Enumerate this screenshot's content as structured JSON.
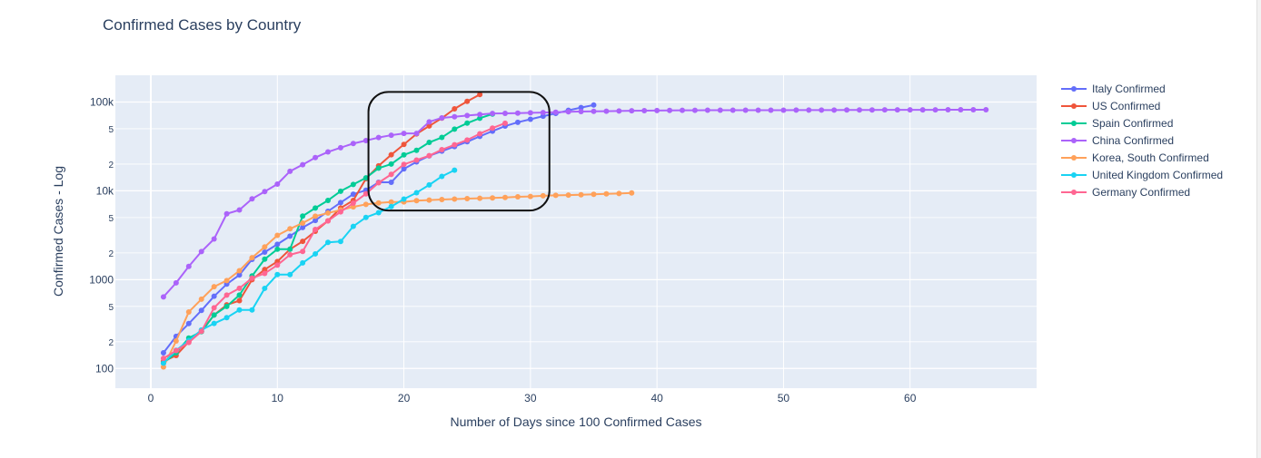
{
  "chart_data": {
    "type": "line",
    "title": "Confirmed Cases by Country",
    "xlabel": "Number of Days since 100 Confirmed Cases",
    "ylabel": "Confirmed Cases - Log",
    "y_scale": "log",
    "xlim": [
      -2.8,
      70
    ],
    "ylim": [
      60,
      200000
    ],
    "x_ticks": [
      0,
      10,
      20,
      30,
      40,
      50,
      60
    ],
    "y_major_ticks": [
      {
        "v": 100,
        "label": "100"
      },
      {
        "v": 1000,
        "label": "1000"
      },
      {
        "v": 10000,
        "label": "10k"
      },
      {
        "v": 100000,
        "label": "100k"
      }
    ],
    "y_minor_ticks": [
      {
        "v": 200,
        "label": "2"
      },
      {
        "v": 500,
        "label": "5"
      },
      {
        "v": 2000,
        "label": "2"
      },
      {
        "v": 5000,
        "label": "5"
      },
      {
        "v": 20000,
        "label": "2"
      },
      {
        "v": 50000,
        "label": "5"
      }
    ],
    "legend_position": "right",
    "highlight_box": {
      "x": [
        17.2,
        31.5
      ],
      "y": [
        6000,
        130000
      ]
    },
    "series": [
      {
        "name": "Italy Confirmed",
        "color": "#636efa",
        "x": [
          1,
          2,
          3,
          4,
          5,
          6,
          7,
          8,
          9,
          10,
          11,
          12,
          13,
          14,
          15,
          16,
          17,
          18,
          19,
          20,
          21,
          22,
          23,
          24,
          25,
          26,
          27,
          28,
          29,
          30,
          31,
          32,
          33,
          34,
          35
        ],
        "y": [
          150,
          230,
          320,
          450,
          650,
          890,
          1130,
          1690,
          2040,
          2500,
          3090,
          3860,
          4640,
          5880,
          7380,
          9170,
          10150,
          12460,
          12460,
          17660,
          21160,
          24750,
          27980,
          31510,
          35710,
          41040,
          47020,
          53580,
          59140,
          63930,
          69180,
          74390,
          80590,
          86500,
          92470
        ]
      },
      {
        "name": "US Confirmed",
        "color": "#ef553b",
        "x": [
          1,
          2,
          3,
          4,
          5,
          6,
          7,
          8,
          9,
          10,
          11,
          12,
          13,
          14,
          15,
          16,
          17,
          18,
          19,
          20,
          21,
          22,
          23,
          24,
          25,
          26
        ],
        "y": [
          120,
          140,
          200,
          260,
          400,
          520,
          580,
          1000,
          1300,
          1600,
          2200,
          2700,
          3500,
          4600,
          6400,
          7800,
          13700,
          19100,
          25500,
          33300,
          43800,
          53700,
          65800,
          83800,
          101700,
          121500
        ]
      },
      {
        "name": "Spain Confirmed",
        "color": "#00cc96",
        "x": [
          1,
          2,
          3,
          4,
          5,
          6,
          7,
          8,
          9,
          10,
          11,
          12,
          13,
          14,
          15,
          16,
          17,
          18,
          19,
          20,
          21,
          22,
          23,
          24,
          25,
          26,
          27
        ],
        "y": [
          115,
          150,
          220,
          260,
          400,
          500,
          670,
          1100,
          1700,
          2200,
          2200,
          5200,
          6400,
          7800,
          9900,
          11800,
          14000,
          18000,
          20000,
          25400,
          28600,
          35100,
          39900,
          49500,
          57800,
          65700,
          73200
        ]
      },
      {
        "name": "China Confirmed",
        "color": "#ab63fa",
        "x": [
          1,
          2,
          3,
          4,
          5,
          6,
          7,
          8,
          9,
          10,
          11,
          12,
          13,
          14,
          15,
          16,
          17,
          18,
          19,
          20,
          21,
          22,
          23,
          24,
          25,
          26,
          27,
          28,
          29,
          30,
          31,
          32,
          33,
          34,
          35,
          36,
          37,
          38,
          39,
          40,
          41,
          42,
          43,
          44,
          45,
          46,
          47,
          48,
          49,
          50,
          51,
          52,
          53,
          54,
          55,
          56,
          57,
          58,
          59,
          60,
          61,
          62,
          63,
          64,
          65,
          66
        ],
        "y": [
          640,
          920,
          1410,
          2070,
          2870,
          5510,
          6090,
          8130,
          9800,
          11900,
          16600,
          19700,
          23700,
          27400,
          30600,
          34100,
          36800,
          39800,
          42300,
          44300,
          44300,
          59800,
          66300,
          68300,
          70400,
          72300,
          74200,
          74600,
          75000,
          75500,
          76100,
          76800,
          77700,
          78100,
          78500,
          78800,
          79300,
          79800,
          80000,
          80200,
          80400,
          80600,
          80700,
          80800,
          80800,
          80900,
          80900,
          80900,
          81000,
          81000,
          81100,
          81100,
          81200,
          81200,
          81300,
          81300,
          81400,
          81500,
          81500,
          81600,
          81600,
          81700,
          81800,
          81800,
          81900,
          81900
        ]
      },
      {
        "name": "Korea, South Confirmed",
        "color": "#ffa15a",
        "x": [
          1,
          2,
          3,
          4,
          5,
          6,
          7,
          8,
          9,
          10,
          11,
          12,
          13,
          14,
          15,
          16,
          17,
          18,
          19,
          20,
          21,
          22,
          23,
          24,
          25,
          26,
          27,
          28,
          29,
          30,
          31,
          32,
          33,
          34,
          35,
          36,
          37,
          38
        ],
        "y": [
          104,
          204,
          433,
          602,
          833,
          977,
          1261,
          1766,
          2337,
          3150,
          3736,
          4335,
          5186,
          5621,
          6088,
          6593,
          7041,
          7314,
          7478,
          7513,
          7755,
          7869,
          7979,
          8086,
          8162,
          8236,
          8320,
          8413,
          8565,
          8652,
          8799,
          8897,
          8961,
          9037,
          9137,
          9241,
          9332,
          9478
        ]
      },
      {
        "name": "United Kingdom Confirmed",
        "color": "#19d3f3",
        "x": [
          1,
          2,
          3,
          4,
          5,
          6,
          7,
          8,
          9,
          10,
          11,
          12,
          13,
          14,
          15,
          16,
          17,
          18,
          19,
          20,
          21,
          22,
          23,
          24
        ],
        "y": [
          115,
          160,
          206,
          271,
          321,
          373,
          456,
          456,
          798,
          1140,
          1140,
          1543,
          1950,
          2626,
          2689,
          3983,
          5018,
          5683,
          6650,
          8077,
          9529,
          11658,
          14543,
          17089
        ]
      },
      {
        "name": "Germany Confirmed",
        "color": "#ff6692",
        "x": [
          1,
          2,
          3,
          4,
          5,
          6,
          7,
          8,
          9,
          10,
          11,
          12,
          13,
          14,
          15,
          16,
          17,
          18,
          19,
          20,
          21,
          22,
          23,
          24,
          25,
          26,
          27,
          28
        ],
        "y": [
          130,
          159,
          196,
          262,
          482,
          670,
          799,
          1040,
          1176,
          1457,
          1908,
          2078,
          3675,
          4585,
          5795,
          7272,
          9257,
          12327,
          15320,
          19848,
          22213,
          24873,
          29056,
          32986,
          37323,
          43938,
          50871,
          57695
        ]
      }
    ]
  }
}
